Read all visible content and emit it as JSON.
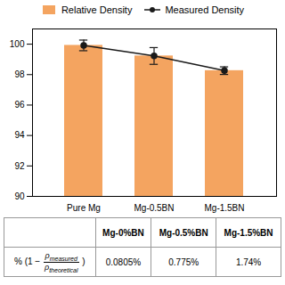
{
  "chart_data": {
    "type": "bar+line",
    "categories": [
      "Pure Mg",
      "Mg-0.5BN",
      "Mg-1.5BN"
    ],
    "series": [
      {
        "name": "Relative Density",
        "type": "bar",
        "color": "#F4A460",
        "values": [
          99.9195,
          99.225,
          98.26
        ]
      },
      {
        "name": "Measured Density",
        "type": "line",
        "color": "#1a1a1a",
        "marker": "o",
        "values": [
          99.9195,
          99.225,
          98.26
        ],
        "errors": [
          0.35,
          0.55,
          0.25
        ]
      }
    ],
    "ylim": [
      90,
      101
    ],
    "yticks": [
      90,
      92,
      94,
      96,
      98,
      100
    ],
    "legend": "upper center",
    "table": {
      "columns": [
        "Mg-0%BN",
        "Mg-0.5%BN",
        "Mg-1.5%BN"
      ],
      "row_label": {
        "prefix": "% (1 −",
        "numerator": {
          "base": "ρ",
          "sub": "measured"
        },
        "denominator": {
          "base": "ρ",
          "sub": "theoretical"
        },
        "suffix": ")"
      },
      "values": [
        "0.0805%",
        "0.775%",
        "1.74%"
      ]
    }
  }
}
